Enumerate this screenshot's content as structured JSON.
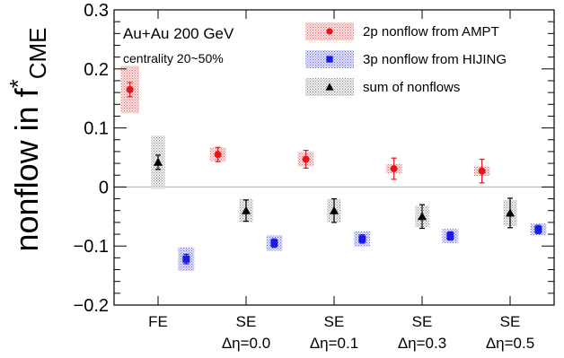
{
  "chart_data": {
    "type": "scatter",
    "categories": [
      {
        "line1": "FE",
        "line2": ""
      },
      {
        "line1": "SE",
        "line2": "Δη=0.0"
      },
      {
        "line1": "SE",
        "line2": "Δη=0.1"
      },
      {
        "line1": "SE",
        "line2": "Δη=0.3"
      },
      {
        "line1": "SE",
        "line2": "Δη=0.5"
      }
    ],
    "ylabel": {
      "main": "nonflow in f",
      "star": "*",
      "sub": "CME"
    },
    "ylim": [
      -0.2,
      0.3
    ],
    "yticks": [
      "−0.2",
      "−0.1",
      "0",
      "0.1",
      "0.2",
      "0.3"
    ],
    "ytick_values": [
      -0.2,
      -0.1,
      0,
      0.1,
      0.2,
      0.3
    ],
    "grid": false,
    "zero_line": true,
    "annotations": [
      "Au+Au 200 GeV",
      "centrality 20~50%"
    ],
    "legend_position": "top-right",
    "series": [
      {
        "name": "2p nonflow from AMPT",
        "color": "#e8141c",
        "box_color": "#f2a0a0",
        "marker": "circle",
        "offset": -0.32,
        "values": [
          0.165,
          0.055,
          0.047,
          0.031,
          0.027
        ],
        "stat_err": [
          0.012,
          0.012,
          0.015,
          0.018,
          0.02
        ],
        "sys_err": [
          0.04,
          0.012,
          0.012,
          0.008,
          0.008
        ]
      },
      {
        "name": "3p nonflow from HIJING",
        "color": "#1818ee",
        "box_color": "#a8a8f4",
        "marker": "square",
        "offset": 0.32,
        "values": [
          -0.122,
          -0.095,
          -0.088,
          -0.083,
          -0.072
        ],
        "stat_err": [
          0.008,
          0.007,
          0.007,
          0.007,
          0.007
        ],
        "sys_err": [
          0.02,
          0.013,
          0.013,
          0.012,
          0.01
        ]
      },
      {
        "name": "sum of nonflows",
        "color": "#000000",
        "box_color": "#b0b0b0",
        "marker": "triangle",
        "offset": 0.0,
        "values": [
          0.042,
          -0.04,
          -0.04,
          -0.05,
          -0.044
        ],
        "stat_err": [
          0.012,
          0.018,
          0.02,
          0.02,
          0.025
        ],
        "sys_err": [
          0.045,
          0.02,
          0.02,
          0.018,
          0.022
        ]
      }
    ]
  }
}
